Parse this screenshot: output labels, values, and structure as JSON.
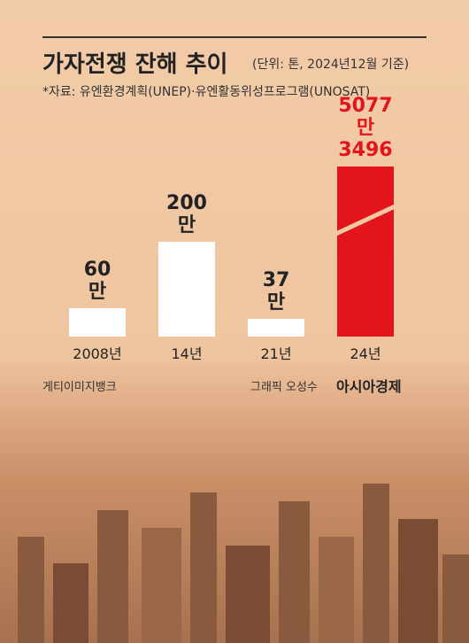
{
  "chart_data": {
    "type": "bar",
    "title": "가자전쟁 잔해 추이",
    "subtitle": "(단위: 톤, 2024년12월 기준)",
    "source": "*자료: 유엔환경계획(UNEP)·유엔활동위성프로그램(UNOSAT)",
    "categories": [
      "2008년",
      "14년",
      "21년",
      "24년"
    ],
    "values": [
      60,
      200,
      37,
      5077.3496
    ],
    "value_labels": [
      "60만",
      "200만",
      "37만",
      "5077만 3496"
    ],
    "colors": [
      "#ffffff",
      "#ffffff",
      "#ffffff",
      "#e3141c"
    ],
    "label_colors": [
      "#222222",
      "#222222",
      "#222222",
      "#e3141c"
    ],
    "photo_credit": "게티이미지뱅크",
    "graphic_credit": "그래픽 오성수",
    "publisher": "아시아경제"
  }
}
